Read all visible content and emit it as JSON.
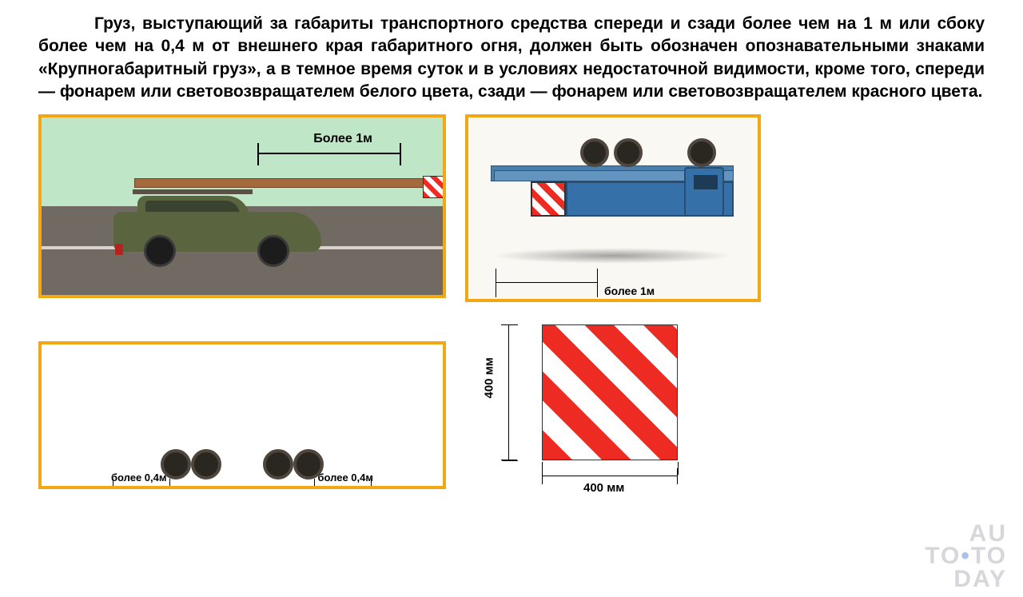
{
  "text": {
    "main": "Груз, выступающий за габариты транспортного средства спереди и сзади более чем на 1 м или сбоку более чем на 0,4 м от внешнего края габаритного огня, должен быть обозначен опознавательными знаками «Крупногабаритный груз», а в темное время суток и в условиях недостаточной видимости, кроме того, спереди — фонарем или световозвращателем белого цвета, сзади — фонарем или световозвращателем красного цвета."
  },
  "panel_car": {
    "dim_label": "Более 1м"
  },
  "panel_truck_left": {
    "dim_label": "более 1м"
  },
  "panel_truck_side": {
    "dim_label_left": "более 0,4м",
    "dim_label_right": "более 0,4м"
  },
  "hazard_sign": {
    "width_label": "400 мм",
    "height_label": "400 мм",
    "stripe_color": "#ed2b23",
    "bg_color": "#ffffff"
  },
  "colors": {
    "panel_border": "#f3a712",
    "car_body": "#5a6540",
    "plank": "#a46a3e",
    "truck_blue": "#3670a8",
    "cab_yellow": "#e6b84a"
  },
  "watermark": {
    "line1": "AU",
    "line2_a": "TO",
    "line2_dot": "•",
    "line2_b": "TO",
    "line3": "DAY"
  }
}
